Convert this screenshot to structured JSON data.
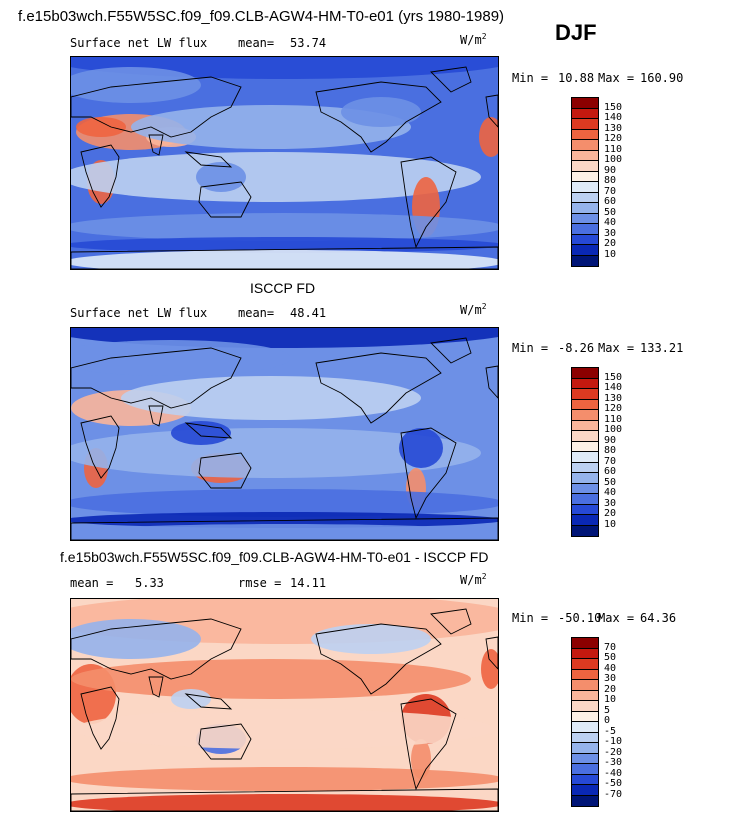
{
  "page": {
    "title": "f.e15b03wch.F55W5SC.f09_f09.CLB-AGW4-HM-T0-e01 (yrs 1980-1989)",
    "season": "DJF"
  },
  "chart_data": [
    {
      "type": "heatmap",
      "name": "model",
      "variable": "Surface net LW flux",
      "mean_label": "mean=",
      "mean": "53.74",
      "units": "W/m",
      "units_exp": "2",
      "min_label": "Min =",
      "min": "10.88",
      "max_label": "Max =",
      "max": "160.90",
      "levels": [
        "150",
        "140",
        "130",
        "120",
        "110",
        "100",
        "90",
        "80",
        "70",
        "60",
        "50",
        "40",
        "30",
        "20",
        "10"
      ],
      "colors": [
        "#8b0000",
        "#c4190f",
        "#dd3a21",
        "#ee6440",
        "#f48e6c",
        "#f9b59a",
        "#fbd7c5",
        "#fdf1e6",
        "#dfeaf7",
        "#bcd0f1",
        "#95b3eb",
        "#6d90e6",
        "#4a6fe0",
        "#2649d5",
        "#0a28b5",
        "#001577"
      ]
    },
    {
      "type": "heatmap",
      "name": "observations",
      "section_title": "ISCCP FD",
      "variable": "Surface net LW flux",
      "mean_label": "mean=",
      "mean": "48.41",
      "units": "W/m",
      "units_exp": "2",
      "min_label": "Min =",
      "min": "-8.26",
      "max_label": "Max =",
      "max": "133.21",
      "levels": [
        "150",
        "140",
        "130",
        "120",
        "110",
        "100",
        "90",
        "80",
        "70",
        "60",
        "50",
        "40",
        "30",
        "20",
        "10"
      ],
      "colors": [
        "#8b0000",
        "#c4190f",
        "#dd3a21",
        "#ee6440",
        "#f48e6c",
        "#f9b59a",
        "#fbd7c5",
        "#fdf1e6",
        "#dfeaf7",
        "#bcd0f1",
        "#95b3eb",
        "#6d90e6",
        "#4a6fe0",
        "#2649d5",
        "#0a28b5",
        "#001577"
      ]
    },
    {
      "type": "heatmap",
      "name": "difference",
      "section_title": "f.e15b03wch.F55W5SC.f09_f09.CLB-AGW4-HM-T0-e01 - ISCCP FD",
      "mean_label": "mean =",
      "mean": "5.33",
      "rmse_label": "rmse =",
      "rmse": "14.11",
      "units": "W/m",
      "units_exp": "2",
      "min_label": "Min =",
      "min": "-50.10",
      "max_label": "Max =",
      "max": "64.36",
      "levels": [
        "70",
        "50",
        "40",
        "30",
        "20",
        "10",
        "5",
        "0",
        "-5",
        "-10",
        "-20",
        "-30",
        "-40",
        "-50",
        "-70"
      ],
      "colors": [
        "#8b0000",
        "#c4190f",
        "#dd3a21",
        "#ee6440",
        "#f48e6c",
        "#f9b59a",
        "#fbd7c5",
        "#fdf1e6",
        "#dfeaf7",
        "#bcd0f1",
        "#95b3eb",
        "#6d90e6",
        "#4a6fe0",
        "#2649d5",
        "#0a28b5",
        "#001577"
      ]
    }
  ]
}
